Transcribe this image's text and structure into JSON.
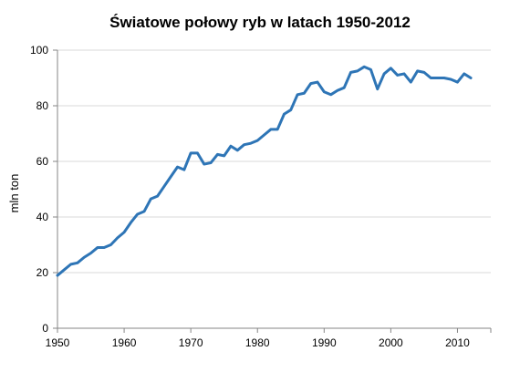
{
  "chart_data": {
    "type": "line",
    "title": "Światowe połowy ryb w latach 1950-2012",
    "xlabel": "",
    "ylabel": "mln ton",
    "xlim": [
      1950,
      2015
    ],
    "ylim": [
      0,
      100
    ],
    "x_ticks": [
      1950,
      1960,
      1970,
      1980,
      1990,
      2000,
      2010
    ],
    "y_ticks": [
      0,
      20,
      40,
      60,
      80,
      100
    ],
    "grid": true,
    "legend": "none",
    "line_color": "#2e75b6",
    "series": [
      {
        "x": [
          1950,
          1951,
          1952,
          1953,
          1954,
          1955,
          1956,
          1957,
          1958,
          1959,
          1960,
          1961,
          1962,
          1963,
          1964,
          1965,
          1966,
          1967,
          1968,
          1969,
          1970,
          1971,
          1972,
          1973,
          1974,
          1975,
          1976,
          1977,
          1978,
          1979,
          1980,
          1981,
          1982,
          1983,
          1984,
          1985,
          1986,
          1987,
          1988,
          1989,
          1990,
          1991,
          1992,
          1993,
          1994,
          1995,
          1996,
          1997,
          1998,
          1999,
          2000,
          2001,
          2002,
          2003,
          2004,
          2005,
          2006,
          2007,
          2008,
          2009,
          2010,
          2011,
          2012
        ],
        "values": [
          19,
          21,
          23,
          23.5,
          25.5,
          27,
          29,
          29,
          30,
          32.5,
          34.5,
          38,
          41,
          42,
          46.5,
          47.5,
          51,
          54.5,
          58,
          57,
          63,
          63,
          59,
          59.5,
          62.5,
          62,
          65.5,
          64,
          66,
          66.5,
          67.5,
          69.5,
          71.5,
          71.5,
          77,
          78.5,
          84,
          84.5,
          88,
          88.5,
          85,
          84,
          85.5,
          86.5,
          92,
          92.5,
          94,
          93,
          86,
          91.5,
          93.5,
          91,
          91.5,
          88.5,
          92.5,
          92,
          90,
          90,
          90,
          89.5,
          88.5,
          91.5,
          90
        ]
      }
    ]
  }
}
